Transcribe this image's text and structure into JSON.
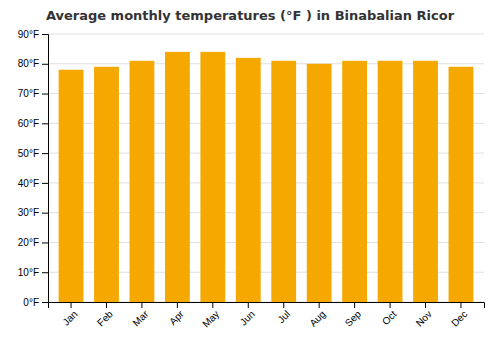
{
  "chart_data": {
    "type": "bar",
    "title": "Average monthly temperatures (°F ) in Binabalian Ricor",
    "categories": [
      "Jan",
      "Feb",
      "Mar",
      "Apr",
      "May",
      "Jun",
      "Jul",
      "Aug",
      "Sep",
      "Oct",
      "Nov",
      "Dec"
    ],
    "values": [
      78,
      79,
      81,
      84,
      84,
      82,
      81,
      80,
      81,
      81,
      81,
      79
    ],
    "color": "#F5A800",
    "ylim": [
      0,
      90
    ],
    "yticks": [
      {
        "value": 0,
        "label": "0°F"
      },
      {
        "value": 10,
        "label": "10°F"
      },
      {
        "value": 20,
        "label": "20°F"
      },
      {
        "value": 30,
        "label": "30°F"
      },
      {
        "value": 40,
        "label": "40°F"
      },
      {
        "value": 50,
        "label": "50°F"
      },
      {
        "value": 60,
        "label": "60°F"
      },
      {
        "value": 70,
        "label": "70°F"
      },
      {
        "value": 80,
        "label": "80°F"
      },
      {
        "value": 90,
        "label": "90°F"
      }
    ],
    "grid": true
  }
}
